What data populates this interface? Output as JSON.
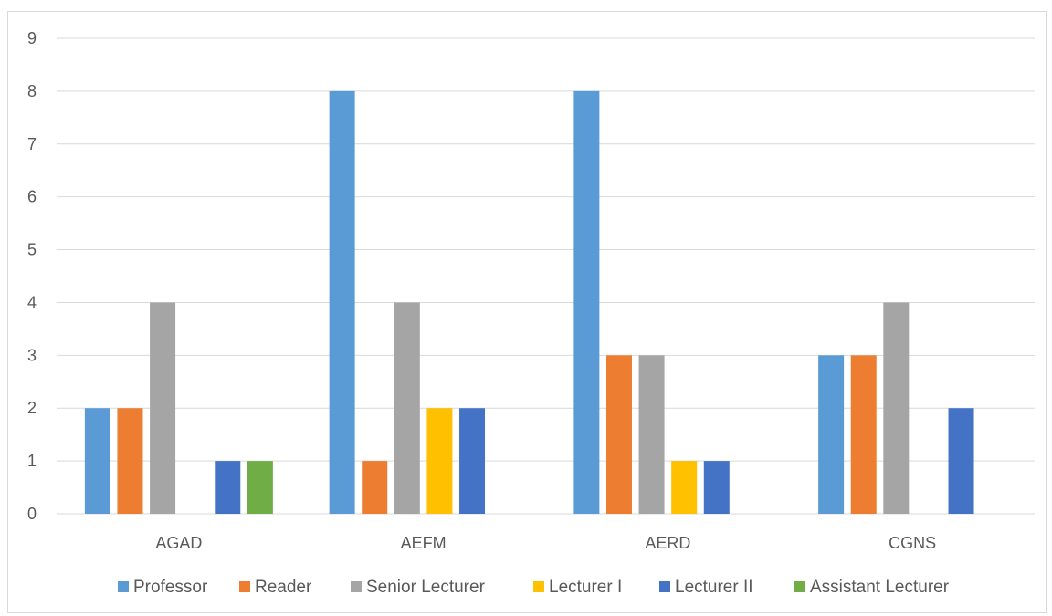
{
  "chart_data": {
    "type": "bar",
    "title": "",
    "xlabel": "",
    "ylabel": "",
    "categories": [
      "AGAD",
      "AEFM",
      "AERD",
      "CGNS"
    ],
    "ylim": [
      0,
      9
    ],
    "yticks": [
      0,
      1,
      2,
      3,
      4,
      5,
      6,
      7,
      8,
      9
    ],
    "grid": true,
    "legend_position": "bottom",
    "series": [
      {
        "name": "Professor",
        "color": "#5b9bd5",
        "values": [
          2,
          8,
          8,
          3
        ]
      },
      {
        "name": "Reader",
        "color": "#ed7d31",
        "values": [
          2,
          1,
          3,
          3
        ]
      },
      {
        "name": "Senior Lecturer",
        "color": "#a5a5a5",
        "values": [
          4,
          4,
          3,
          4
        ]
      },
      {
        "name": "Lecturer I",
        "color": "#ffc000",
        "values": [
          0,
          2,
          1,
          0
        ]
      },
      {
        "name": "Lecturer II",
        "color": "#4472c4",
        "values": [
          1,
          2,
          1,
          2
        ]
      },
      {
        "name": "Assistant Lecturer",
        "color": "#70ad47",
        "values": [
          1,
          0,
          0,
          0
        ]
      }
    ]
  }
}
